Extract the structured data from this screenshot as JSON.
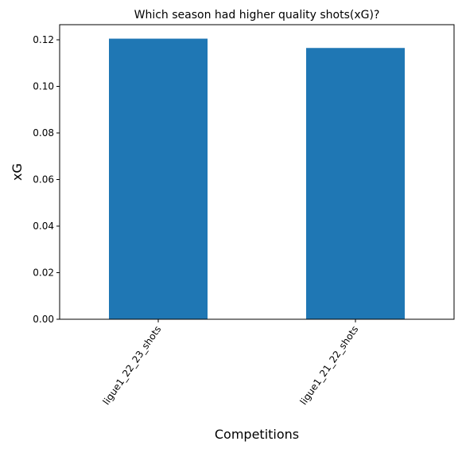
{
  "chart_data": {
    "type": "bar",
    "title": "Which season had higher quality shots(xG)?",
    "xlabel": "Competitions",
    "ylabel": "xG",
    "categories": [
      "ligue1_22_23_shots",
      "ligue1_21_22_shots"
    ],
    "values": [
      0.1205,
      0.1165
    ],
    "ylim": [
      0,
      0.1265
    ],
    "yticks": [
      "0.00",
      "0.02",
      "0.04",
      "0.06",
      "0.08",
      "0.10",
      "0.12"
    ],
    "ytick_values": [
      0,
      0.02,
      0.04,
      0.06,
      0.08,
      0.1,
      0.12
    ],
    "grid": false,
    "bar_color": "#1f77b4"
  }
}
